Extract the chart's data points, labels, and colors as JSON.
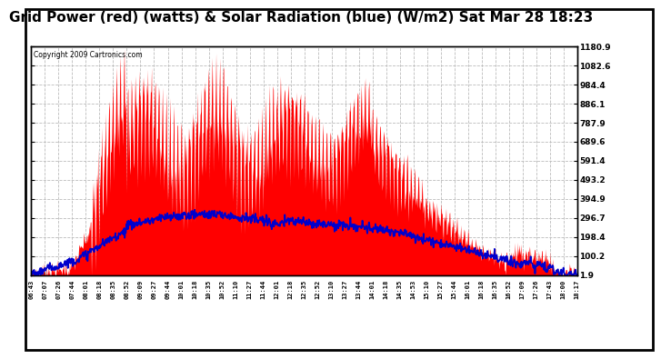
{
  "title": "Grid Power (red) (watts) & Solar Radiation (blue) (W/m2) Sat Mar 28 18:23",
  "title_fontsize": 11,
  "copyright_text": "Copyright 2009 Cartronics.com",
  "background_color": "#ffffff",
  "red_color": "#ff0000",
  "blue_color": "#0000cc",
  "yticks": [
    1.9,
    100.2,
    198.4,
    296.7,
    394.9,
    493.2,
    591.4,
    689.6,
    787.9,
    886.1,
    984.4,
    1082.6,
    1180.9
  ],
  "x_tick_labels": [
    "06:43",
    "07:07",
    "07:26",
    "07:44",
    "08:01",
    "08:18",
    "08:35",
    "08:52",
    "09:09",
    "09:27",
    "09:44",
    "10:01",
    "10:18",
    "10:35",
    "10:52",
    "11:10",
    "11:27",
    "11:44",
    "12:01",
    "12:18",
    "12:35",
    "12:52",
    "13:10",
    "13:27",
    "13:44",
    "14:01",
    "14:18",
    "14:35",
    "14:53",
    "15:10",
    "15:27",
    "15:44",
    "16:01",
    "16:18",
    "16:35",
    "16:52",
    "17:09",
    "17:26",
    "17:43",
    "18:00",
    "18:17"
  ],
  "ymin": 1.9,
  "ymax": 1180.9,
  "grid_color": "#bbbbbb",
  "total_minutes": 690
}
